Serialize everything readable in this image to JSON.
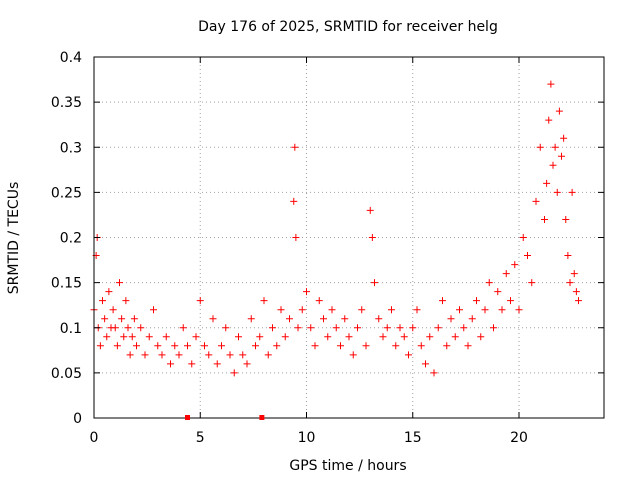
{
  "chart_data": {
    "type": "scatter",
    "title": "Day 176 of 2025, SRMTID for receiver helg",
    "xlabel": "GPS time / hours",
    "ylabel": "SRMTID / TECUs",
    "xlim": [
      0,
      24
    ],
    "ylim": [
      0,
      0.4
    ],
    "x_ticks": [
      0,
      5,
      10,
      15,
      20
    ],
    "x_tick_labels": [
      "0",
      "5",
      "10",
      "15",
      "20"
    ],
    "y_ticks": [
      0,
      0.05,
      0.1,
      0.15,
      0.2,
      0.25,
      0.3,
      0.35,
      0.4
    ],
    "y_tick_labels": [
      "0",
      "0.05",
      "0.1",
      "0.15",
      "0.2",
      "0.25",
      "0.3",
      "0.35",
      "0.4"
    ],
    "grid": true,
    "marker": "+",
    "series": [
      {
        "name": "SRMTID",
        "color": "#ff0000",
        "x": [
          0.0,
          0.1,
          0.15,
          0.2,
          0.3,
          0.4,
          0.5,
          0.6,
          0.7,
          0.8,
          0.9,
          1.0,
          1.1,
          1.2,
          1.3,
          1.4,
          1.5,
          1.6,
          1.7,
          1.8,
          1.9,
          2.0,
          2.2,
          2.4,
          2.6,
          2.8,
          3.0,
          3.2,
          3.4,
          3.6,
          3.8,
          4.0,
          4.2,
          4.4,
          4.6,
          4.8,
          5.0,
          5.2,
          5.4,
          5.6,
          5.8,
          6.0,
          6.2,
          6.4,
          6.6,
          6.8,
          7.0,
          7.2,
          7.4,
          7.6,
          7.8,
          8.0,
          8.2,
          8.4,
          8.6,
          8.8,
          9.0,
          9.2,
          9.4,
          9.45,
          9.5,
          9.6,
          9.8,
          10.0,
          10.2,
          10.4,
          10.6,
          10.8,
          11.0,
          11.2,
          11.4,
          11.6,
          11.8,
          12.0,
          12.2,
          12.4,
          12.6,
          12.8,
          13.0,
          13.1,
          13.2,
          13.4,
          13.6,
          13.8,
          14.0,
          14.2,
          14.4,
          14.6,
          14.8,
          15.0,
          15.2,
          15.4,
          15.6,
          15.8,
          16.0,
          16.2,
          16.4,
          16.6,
          16.8,
          17.0,
          17.2,
          17.4,
          17.6,
          17.8,
          18.0,
          18.2,
          18.4,
          18.6,
          18.8,
          19.0,
          19.2,
          19.4,
          19.6,
          19.8,
          20.0,
          20.2,
          20.4,
          20.6,
          20.8,
          21.0,
          21.2,
          21.3,
          21.4,
          21.5,
          21.6,
          21.7,
          21.8,
          21.9,
          22.0,
          22.1,
          22.2,
          22.3,
          22.4,
          22.5,
          22.6,
          22.7,
          22.8
        ],
        "y": [
          0.12,
          0.18,
          0.2,
          0.1,
          0.08,
          0.13,
          0.11,
          0.09,
          0.14,
          0.1,
          0.12,
          0.1,
          0.08,
          0.15,
          0.11,
          0.09,
          0.13,
          0.1,
          0.07,
          0.09,
          0.11,
          0.08,
          0.1,
          0.07,
          0.09,
          0.12,
          0.08,
          0.07,
          0.09,
          0.06,
          0.08,
          0.07,
          0.1,
          0.08,
          0.06,
          0.09,
          0.13,
          0.08,
          0.07,
          0.11,
          0.06,
          0.08,
          0.1,
          0.07,
          0.05,
          0.09,
          0.07,
          0.06,
          0.11,
          0.08,
          0.09,
          0.13,
          0.07,
          0.1,
          0.08,
          0.12,
          0.09,
          0.11,
          0.24,
          0.3,
          0.2,
          0.1,
          0.12,
          0.14,
          0.1,
          0.08,
          0.13,
          0.11,
          0.09,
          0.12,
          0.1,
          0.08,
          0.11,
          0.09,
          0.07,
          0.1,
          0.12,
          0.08,
          0.23,
          0.2,
          0.15,
          0.11,
          0.09,
          0.1,
          0.12,
          0.08,
          0.1,
          0.09,
          0.07,
          0.1,
          0.12,
          0.08,
          0.06,
          0.09,
          0.05,
          0.1,
          0.13,
          0.08,
          0.11,
          0.09,
          0.12,
          0.1,
          0.08,
          0.11,
          0.13,
          0.09,
          0.12,
          0.15,
          0.1,
          0.14,
          0.12,
          0.16,
          0.13,
          0.17,
          0.12,
          0.2,
          0.18,
          0.15,
          0.24,
          0.3,
          0.22,
          0.26,
          0.33,
          0.37,
          0.28,
          0.3,
          0.25,
          0.34,
          0.29,
          0.31,
          0.22,
          0.18,
          0.15,
          0.25,
          0.16,
          0.14,
          0.13
        ]
      }
    ],
    "markers_on_axis": [
      {
        "x": 4.4,
        "y": 0
      },
      {
        "x": 7.9,
        "y": 0
      }
    ]
  }
}
